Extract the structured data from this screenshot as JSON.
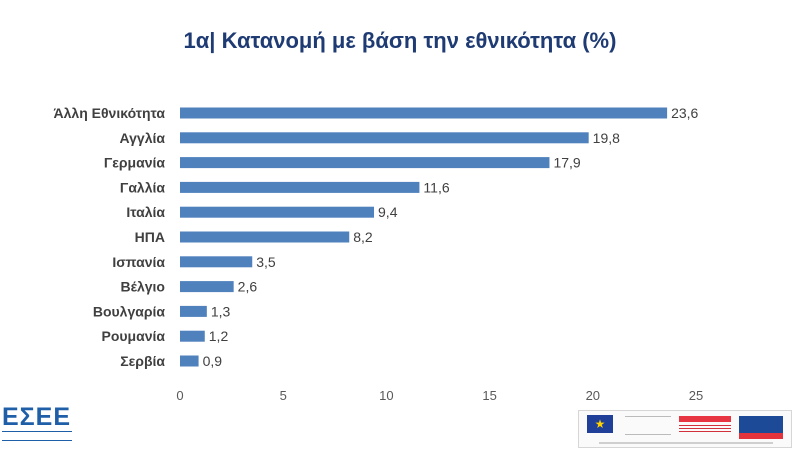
{
  "chart_data": {
    "type": "bar",
    "orientation": "horizontal",
    "title": "1α| Κατανομή με βάση την εθνικότητα (%)",
    "categories": [
      "Άλλη Εθνικότητα",
      "Αγγλία",
      "Γερμανία",
      "Γαλλία",
      "Ιταλία",
      "ΗΠΑ",
      "Ισπανία",
      "Βέλγιο",
      "Βουλγαρία",
      "Ρουμανία",
      "Σερβία"
    ],
    "values": [
      23.6,
      19.8,
      17.9,
      11.6,
      9.4,
      8.2,
      3.5,
      2.6,
      1.3,
      1.2,
      0.9
    ],
    "value_labels": [
      "23,6",
      "19,8",
      "17,9",
      "11,6",
      "9,4",
      "8,2",
      "3,5",
      "2,6",
      "1,3",
      "1,2",
      "0,9"
    ],
    "x_ticks": [
      0,
      5,
      10,
      15,
      20,
      25
    ],
    "xlim": [
      0,
      25
    ],
    "xlabel": "",
    "ylabel": "",
    "grid": false,
    "legend": "none",
    "bar_color": "#4f81bd"
  },
  "logo": {
    "brand": "ΕΣΕΕ"
  },
  "colors": {
    "title": "#1f3b73",
    "text": "#404040",
    "logo": "#1f5fa8"
  }
}
